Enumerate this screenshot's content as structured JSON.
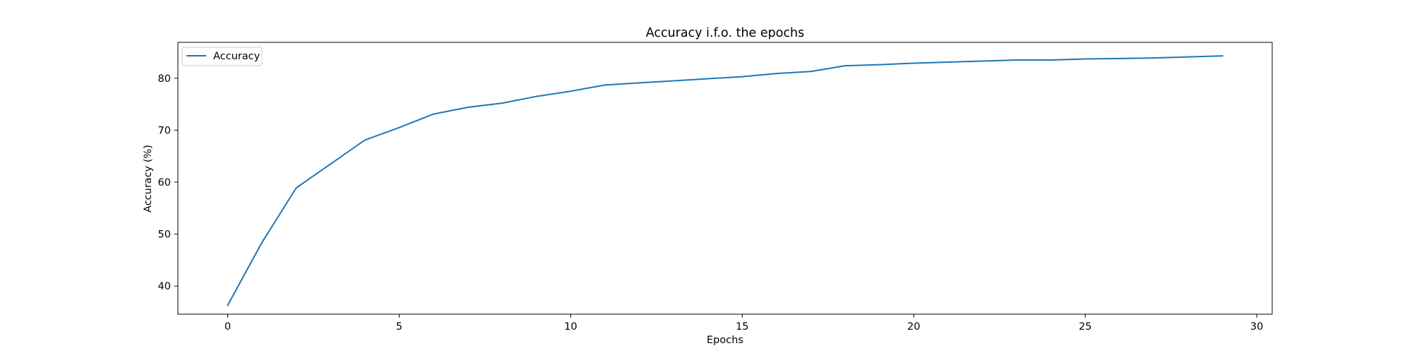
{
  "chart_data": {
    "type": "line",
    "title": "Accuracy i.f.o. the epochs",
    "xlabel": "Epochs",
    "ylabel": "Accuracy (%)",
    "xlim": [
      -1.45,
      30.45
    ],
    "ylim": [
      34.6,
      86.9
    ],
    "xticks": [
      0,
      5,
      10,
      15,
      20,
      25,
      30
    ],
    "yticks": [
      40,
      50,
      60,
      70,
      80
    ],
    "grid": false,
    "legend_position": "top-left",
    "series": [
      {
        "name": "Accuracy",
        "color": "#1f77b4",
        "x": [
          0,
          1,
          2,
          3,
          4,
          5,
          6,
          7,
          8,
          9,
          10,
          11,
          12,
          13,
          14,
          15,
          16,
          17,
          18,
          19,
          20,
          21,
          22,
          23,
          24,
          25,
          26,
          27,
          28,
          29
        ],
        "y": [
          36.3,
          48.4,
          58.9,
          63.5,
          68.1,
          70.5,
          73.1,
          74.4,
          75.2,
          76.5,
          77.5,
          78.7,
          79.1,
          79.5,
          79.9,
          80.3,
          80.9,
          81.3,
          82.4,
          82.6,
          82.9,
          83.1,
          83.3,
          83.5,
          83.5,
          83.7,
          83.8,
          83.9,
          84.1,
          84.3
        ]
      }
    ]
  }
}
